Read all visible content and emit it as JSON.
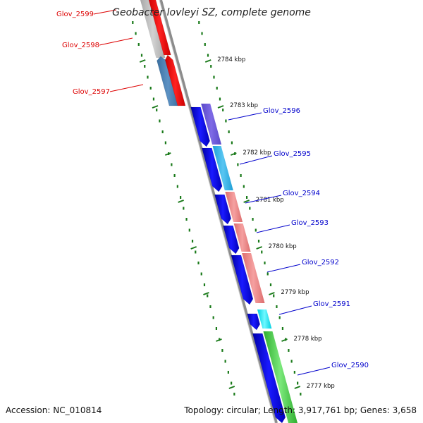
{
  "title": "Geobacter lovleyi SZ, complete genome",
  "accession": "Accession: NC_010814",
  "summary": "Topology: circular; Length: 3,917,761 bp; Genes: 3,658",
  "ticks": [
    "2784 kbp",
    "2783 kbp",
    "2782 kbp",
    "2781 kbp",
    "2780 kbp",
    "2779 kbp",
    "2778 kbp",
    "2777 kbp"
  ],
  "genes_reverse": [
    "Glov_2599",
    "Glov_2598",
    "Glov_2597"
  ],
  "genes_forward": [
    "Glov_2596",
    "Glov_2595",
    "Glov_2594",
    "Glov_2593",
    "Glov_2592",
    "Glov_2591",
    "Glov_2590"
  ],
  "colors": {
    "forward_label": "#0000cc",
    "reverse_label": "#dd0000",
    "scale_dots": "#1a7a1a",
    "backbone": "#888888"
  }
}
